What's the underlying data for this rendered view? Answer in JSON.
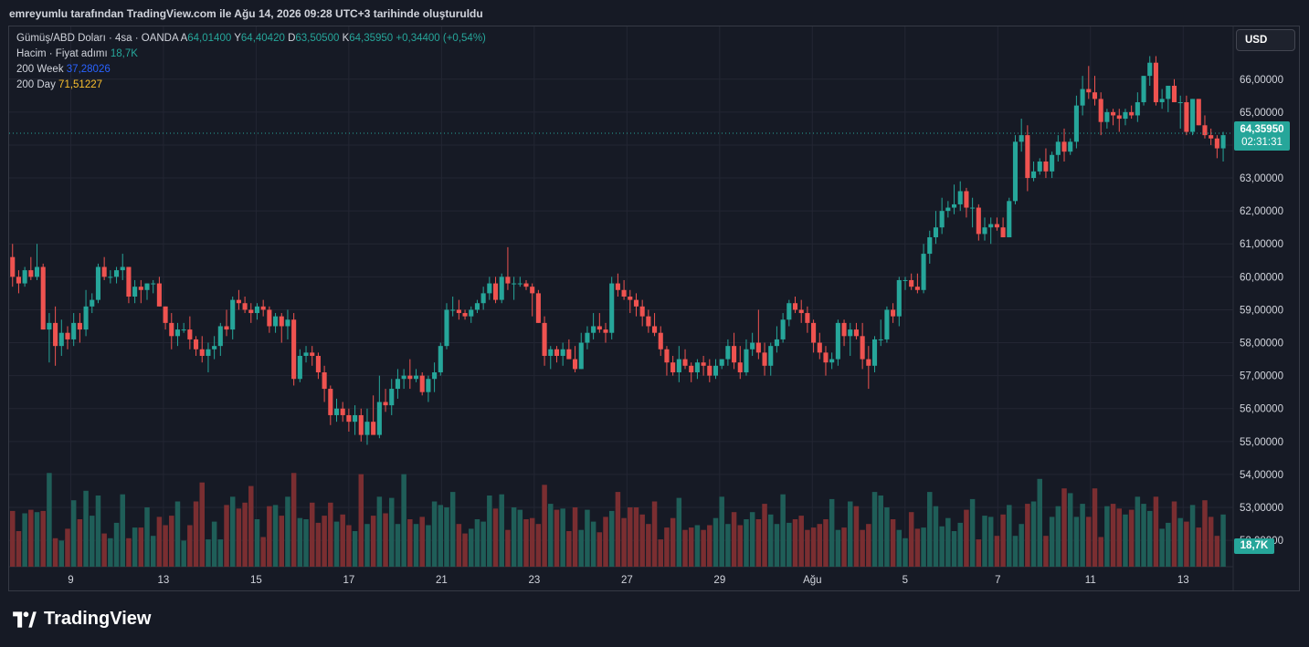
{
  "caption": "emreyumlu tarafından TradingView.com ile Ağu 14, 2026 09:28 UTC+3 tarihinde oluşturuldu",
  "legend": {
    "symbol": "Gümüş/ABD Doları · 4sa · OANDA",
    "a_label": "A",
    "a_value": "64,01400",
    "y_label": "Y",
    "y_value": "64,40420",
    "d_label": "D",
    "d_value": "63,50500",
    "k_label": "K",
    "k_value": "64,35950",
    "change": "+0,34400 (+0,54%)",
    "volume_label": "Hacim · Fiyat adımı",
    "volume_value": "18,7K",
    "ma200w_label": "200 Week",
    "ma200w_value": "37,28026",
    "ma200d_label": "200 Day",
    "ma200d_value": "71,51227"
  },
  "currency_button": "USD",
  "last_price": {
    "value": "64,35950",
    "countdown": "02:31:31"
  },
  "last_volume": "18,7K",
  "brand": "TradingView",
  "colors": {
    "background": "#161a25",
    "grid": "#232633",
    "up": "#26a69a",
    "down": "#ef5350",
    "vol_up": "#1f5e58",
    "vol_down": "#7a2e31",
    "text": "#d1d4dc"
  },
  "chart_data": {
    "type": "candlestick",
    "y_axis": {
      "ticks": [
        "66,00000",
        "65,00000",
        "64,00000",
        "63,00000",
        "62,00000",
        "61,00000",
        "60,00000",
        "59,00000",
        "58,00000",
        "57,00000",
        "56,00000",
        "55,00000",
        "54,00000",
        "53,00000",
        "52,00000"
      ],
      "tick_values": [
        66,
        65,
        64,
        63,
        62,
        61,
        60,
        59,
        58,
        57,
        56,
        55,
        54,
        53,
        52
      ],
      "range": [
        51.2,
        67.6
      ]
    },
    "x_axis": {
      "ticks": [
        "9",
        "13",
        "15",
        "17",
        "21",
        "23",
        "27",
        "29",
        "Ağu",
        "5",
        "7",
        "11",
        "13"
      ]
    },
    "grid": true,
    "last_price_line": 64.3595,
    "ohlc": [
      [
        60.6,
        61.0,
        59.7,
        60.0
      ],
      [
        60.0,
        60.2,
        59.5,
        59.8
      ],
      [
        59.8,
        60.3,
        59.7,
        60.2
      ],
      [
        60.2,
        60.6,
        59.9,
        60.0
      ],
      [
        60.0,
        61.0,
        59.9,
        60.3
      ],
      [
        60.3,
        60.4,
        58.4,
        58.4
      ],
      [
        58.4,
        58.9,
        57.4,
        58.6
      ],
      [
        58.6,
        59.1,
        57.3,
        57.9
      ],
      [
        57.9,
        58.7,
        57.6,
        58.3
      ],
      [
        58.3,
        58.5,
        57.8,
        58.1
      ],
      [
        58.1,
        58.9,
        57.9,
        58.6
      ],
      [
        58.6,
        58.9,
        58.0,
        58.4
      ],
      [
        58.4,
        59.6,
        58.2,
        59.1
      ],
      [
        59.1,
        59.5,
        58.9,
        59.3
      ],
      [
        59.3,
        60.4,
        59.2,
        60.3
      ],
      [
        60.3,
        60.6,
        59.9,
        60.0
      ],
      [
        60.0,
        60.2,
        59.8,
        60.0
      ],
      [
        60.0,
        60.3,
        59.8,
        60.2
      ],
      [
        60.2,
        60.7,
        59.9,
        60.3
      ],
      [
        60.3,
        60.3,
        59.2,
        59.4
      ],
      [
        59.4,
        59.9,
        59.2,
        59.7
      ],
      [
        59.7,
        59.9,
        59.2,
        59.6
      ],
      [
        59.6,
        59.8,
        59.3,
        59.8
      ],
      [
        59.8,
        59.9,
        59.5,
        59.8
      ],
      [
        59.8,
        60.0,
        59.1,
        59.1
      ],
      [
        59.1,
        59.1,
        58.4,
        58.6
      ],
      [
        58.6,
        58.9,
        57.8,
        58.2
      ],
      [
        58.2,
        58.6,
        57.9,
        58.4
      ],
      [
        58.4,
        58.6,
        58.3,
        58.4
      ],
      [
        58.4,
        58.8,
        57.8,
        58.1
      ],
      [
        58.1,
        58.2,
        57.6,
        57.8
      ],
      [
        57.8,
        58.2,
        57.4,
        57.6
      ],
      [
        57.6,
        58.0,
        57.1,
        57.8
      ],
      [
        57.8,
        58.2,
        57.5,
        57.9
      ],
      [
        57.9,
        58.6,
        57.6,
        58.5
      ],
      [
        58.5,
        59.0,
        58.2,
        58.4
      ],
      [
        58.4,
        59.4,
        58.1,
        59.3
      ],
      [
        59.3,
        59.6,
        59.0,
        59.2
      ],
      [
        59.2,
        59.4,
        58.9,
        59.0
      ],
      [
        59.0,
        59.2,
        58.6,
        58.9
      ],
      [
        58.9,
        59.2,
        58.7,
        59.1
      ],
      [
        59.1,
        59.3,
        58.8,
        59.0
      ],
      [
        59.0,
        59.1,
        58.3,
        58.5
      ],
      [
        58.5,
        58.9,
        58.3,
        58.8
      ],
      [
        58.8,
        58.9,
        58.0,
        58.5
      ],
      [
        58.5,
        59.0,
        58.1,
        58.7
      ],
      [
        58.7,
        58.9,
        56.7,
        56.9
      ],
      [
        56.9,
        57.8,
        56.8,
        57.6
      ],
      [
        57.6,
        57.9,
        57.4,
        57.7
      ],
      [
        57.7,
        57.9,
        57.3,
        57.6
      ],
      [
        57.6,
        57.7,
        56.9,
        57.1
      ],
      [
        57.1,
        57.3,
        56.2,
        56.6
      ],
      [
        56.6,
        56.7,
        55.5,
        55.8
      ],
      [
        55.8,
        56.3,
        55.6,
        56.0
      ],
      [
        56.0,
        56.2,
        55.6,
        55.8
      ],
      [
        55.8,
        56.0,
        55.3,
        55.6
      ],
      [
        55.6,
        56.1,
        55.2,
        55.8
      ],
      [
        55.8,
        56.0,
        55.0,
        55.2
      ],
      [
        55.2,
        56.0,
        54.9,
        55.6
      ],
      [
        55.6,
        56.4,
        55.3,
        55.2
      ],
      [
        55.2,
        57.0,
        55.1,
        56.2
      ],
      [
        56.2,
        56.6,
        55.9,
        56.1
      ],
      [
        56.1,
        56.9,
        55.8,
        56.6
      ],
      [
        56.6,
        57.2,
        56.3,
        56.9
      ],
      [
        56.9,
        57.2,
        56.6,
        57.0
      ],
      [
        57.0,
        57.5,
        56.6,
        56.9
      ],
      [
        56.9,
        57.2,
        56.8,
        57.0
      ],
      [
        57.0,
        57.1,
        56.4,
        56.5
      ],
      [
        56.5,
        57.0,
        56.2,
        56.9
      ],
      [
        56.9,
        57.4,
        56.5,
        57.1
      ],
      [
        57.1,
        58.0,
        57.0,
        57.9
      ],
      [
        57.9,
        59.2,
        57.8,
        59.0
      ],
      [
        59.0,
        59.4,
        58.8,
        59.0
      ],
      [
        59.0,
        59.3,
        58.7,
        58.9
      ],
      [
        58.9,
        59.0,
        58.7,
        58.8
      ],
      [
        58.8,
        59.1,
        58.6,
        59.0
      ],
      [
        59.0,
        59.3,
        58.9,
        59.2
      ],
      [
        59.2,
        59.7,
        59.0,
        59.5
      ],
      [
        59.5,
        60.0,
        59.3,
        59.8
      ],
      [
        59.8,
        60.0,
        59.2,
        59.3
      ],
      [
        59.3,
        60.1,
        59.2,
        60.0
      ],
      [
        60.0,
        60.9,
        59.6,
        59.8
      ],
      [
        59.8,
        60.0,
        59.3,
        59.8
      ],
      [
        59.8,
        60.0,
        59.7,
        59.8
      ],
      [
        59.8,
        59.9,
        59.6,
        59.7
      ],
      [
        59.7,
        59.8,
        58.8,
        59.5
      ],
      [
        59.5,
        59.6,
        58.6,
        58.6
      ],
      [
        58.6,
        58.8,
        57.3,
        57.6
      ],
      [
        57.6,
        57.9,
        57.2,
        57.8
      ],
      [
        57.8,
        57.9,
        57.4,
        57.6
      ],
      [
        57.6,
        58.0,
        57.3,
        57.8
      ],
      [
        57.8,
        58.1,
        57.6,
        57.5
      ],
      [
        57.5,
        57.9,
        57.1,
        57.2
      ],
      [
        57.2,
        58.3,
        57.2,
        58.0
      ],
      [
        58.0,
        58.5,
        57.8,
        58.3
      ],
      [
        58.3,
        58.9,
        58.1,
        58.5
      ],
      [
        58.5,
        58.9,
        58.3,
        58.4
      ],
      [
        58.4,
        58.6,
        58.0,
        58.3
      ],
      [
        58.3,
        60.0,
        58.1,
        59.8
      ],
      [
        59.8,
        60.1,
        59.4,
        59.6
      ],
      [
        59.6,
        59.9,
        59.3,
        59.4
      ],
      [
        59.4,
        59.6,
        58.9,
        59.3
      ],
      [
        59.3,
        59.5,
        58.8,
        59.1
      ],
      [
        59.1,
        59.3,
        58.5,
        58.8
      ],
      [
        58.8,
        59.0,
        58.3,
        58.5
      ],
      [
        58.5,
        58.9,
        58.2,
        58.3
      ],
      [
        58.3,
        58.5,
        57.6,
        57.8
      ],
      [
        57.8,
        57.9,
        57.0,
        57.4
      ],
      [
        57.4,
        57.6,
        57.0,
        57.1
      ],
      [
        57.1,
        57.9,
        56.8,
        57.5
      ],
      [
        57.5,
        57.8,
        57.2,
        57.3
      ],
      [
        57.3,
        57.4,
        56.8,
        57.1
      ],
      [
        57.1,
        57.5,
        56.9,
        57.4
      ],
      [
        57.4,
        57.6,
        57.0,
        57.3
      ],
      [
        57.3,
        57.5,
        56.8,
        57.0
      ],
      [
        57.0,
        57.5,
        56.9,
        57.3
      ],
      [
        57.3,
        57.5,
        57.2,
        57.5
      ],
      [
        57.5,
        58.1,
        57.3,
        57.9
      ],
      [
        57.9,
        58.3,
        57.2,
        57.4
      ],
      [
        57.4,
        57.9,
        56.9,
        57.1
      ],
      [
        57.1,
        58.1,
        57.0,
        57.8
      ],
      [
        57.8,
        58.3,
        57.6,
        58.0
      ],
      [
        58.0,
        59.0,
        57.5,
        57.7
      ],
      [
        57.7,
        58.0,
        57.0,
        57.3
      ],
      [
        57.3,
        58.0,
        57.0,
        57.9
      ],
      [
        57.9,
        58.5,
        57.7,
        58.1
      ],
      [
        58.1,
        58.9,
        58.0,
        58.7
      ],
      [
        58.7,
        59.3,
        58.5,
        59.2
      ],
      [
        59.2,
        59.4,
        58.9,
        59.0
      ],
      [
        59.0,
        59.3,
        58.6,
        58.9
      ],
      [
        58.9,
        59.1,
        58.3,
        58.6
      ],
      [
        58.6,
        58.7,
        57.7,
        58.0
      ],
      [
        58.0,
        58.3,
        57.5,
        57.7
      ],
      [
        57.7,
        57.9,
        57.0,
        57.4
      ],
      [
        57.4,
        57.7,
        57.2,
        57.5
      ],
      [
        57.5,
        58.7,
        57.3,
        58.6
      ],
      [
        58.6,
        58.7,
        57.9,
        58.2
      ],
      [
        58.2,
        58.6,
        57.6,
        58.4
      ],
      [
        58.4,
        58.6,
        58.1,
        58.2
      ],
      [
        58.2,
        58.6,
        57.2,
        57.5
      ],
      [
        57.5,
        57.9,
        56.6,
        57.3
      ],
      [
        57.3,
        58.2,
        57.1,
        58.1
      ],
      [
        58.1,
        58.7,
        57.9,
        58.1
      ],
      [
        58.1,
        59.1,
        58.0,
        59.0
      ],
      [
        59.0,
        59.2,
        58.6,
        58.8
      ],
      [
        58.8,
        60.0,
        58.5,
        59.9
      ],
      [
        59.9,
        60.0,
        59.6,
        59.9
      ],
      [
        59.9,
        60.1,
        59.6,
        59.7
      ],
      [
        59.7,
        60.1,
        59.5,
        59.6
      ],
      [
        59.6,
        61.0,
        59.5,
        60.7
      ],
      [
        60.7,
        61.4,
        60.4,
        61.2
      ],
      [
        61.2,
        62.0,
        61.0,
        61.5
      ],
      [
        61.5,
        62.4,
        61.3,
        62.0
      ],
      [
        62.0,
        62.3,
        61.8,
        62.1
      ],
      [
        62.1,
        62.8,
        61.9,
        62.2
      ],
      [
        62.2,
        62.9,
        62.0,
        62.6
      ],
      [
        62.6,
        62.7,
        61.8,
        62.1
      ],
      [
        62.1,
        62.4,
        61.5,
        62.1
      ],
      [
        62.1,
        62.2,
        61.1,
        61.3
      ],
      [
        61.3,
        61.8,
        61.1,
        61.5
      ],
      [
        61.5,
        61.8,
        61.0,
        61.6
      ],
      [
        61.6,
        61.8,
        61.4,
        61.5
      ],
      [
        61.5,
        61.8,
        61.2,
        61.2
      ],
      [
        61.2,
        62.4,
        61.2,
        62.3
      ],
      [
        62.3,
        64.3,
        62.2,
        64.1
      ],
      [
        64.1,
        64.8,
        63.8,
        64.3
      ],
      [
        64.3,
        64.6,
        62.6,
        63.0
      ],
      [
        63.0,
        63.5,
        62.9,
        63.2
      ],
      [
        63.2,
        63.6,
        63.1,
        63.5
      ],
      [
        63.5,
        63.9,
        63.0,
        63.2
      ],
      [
        63.2,
        63.8,
        63.0,
        63.7
      ],
      [
        63.7,
        64.3,
        63.5,
        64.1
      ],
      [
        64.1,
        64.5,
        63.5,
        63.8
      ],
      [
        63.8,
        64.2,
        63.7,
        64.1
      ],
      [
        64.1,
        65.5,
        63.9,
        65.2
      ],
      [
        65.2,
        66.1,
        64.9,
        65.7
      ],
      [
        65.7,
        66.4,
        65.4,
        65.6
      ],
      [
        65.6,
        66.1,
        65.2,
        65.4
      ],
      [
        65.4,
        65.6,
        64.3,
        64.7
      ],
      [
        64.7,
        65.1,
        64.5,
        65.0
      ],
      [
        65.0,
        65.1,
        64.6,
        64.9
      ],
      [
        64.9,
        65.1,
        64.4,
        64.8
      ],
      [
        64.8,
        65.1,
        64.6,
        65.0
      ],
      [
        65.0,
        65.2,
        64.8,
        64.9
      ],
      [
        64.9,
        65.6,
        64.7,
        65.3
      ],
      [
        65.3,
        66.1,
        65.2,
        66.1
      ],
      [
        66.1,
        66.7,
        65.8,
        66.5
      ],
      [
        66.5,
        66.7,
        65.2,
        65.3
      ],
      [
        65.3,
        65.7,
        65.1,
        65.4
      ],
      [
        65.4,
        65.8,
        65.0,
        65.8
      ],
      [
        65.8,
        66.0,
        65.3,
        65.3
      ],
      [
        65.3,
        65.5,
        64.5,
        65.3
      ],
      [
        65.3,
        65.5,
        64.3,
        64.4
      ],
      [
        64.4,
        65.4,
        64.3,
        65.4
      ],
      [
        65.4,
        65.4,
        64.6,
        64.6
      ],
      [
        64.6,
        64.9,
        64.2,
        64.3
      ],
      [
        64.3,
        64.5,
        64.0,
        64.2
      ],
      [
        64.2,
        64.3,
        63.6,
        63.9
      ],
      [
        63.9,
        64.4,
        63.5,
        64.3
      ]
    ],
    "volume": [
      0.47,
      0.3,
      0.45,
      0.48,
      0.46,
      0.47,
      0.79,
      0.24,
      0.22,
      0.32,
      0.56,
      0.4,
      0.64,
      0.43,
      0.6,
      0.28,
      0.24,
      0.37,
      0.61,
      0.24,
      0.33,
      0.33,
      0.5,
      0.26,
      0.42,
      0.35,
      0.43,
      0.55,
      0.22,
      0.35,
      0.55,
      0.71,
      0.23,
      0.38,
      0.23,
      0.52,
      0.59,
      0.49,
      0.54,
      0.68,
      0.4,
      0.25,
      0.51,
      0.52,
      0.43,
      0.59,
      0.79,
      0.41,
      0.4,
      0.54,
      0.37,
      0.43,
      0.54,
      0.38,
      0.44,
      0.35,
      0.3,
      0.78,
      0.36,
      0.43,
      0.59,
      0.45,
      0.58,
      0.36,
      0.78,
      0.4,
      0.36,
      0.42,
      0.35,
      0.55,
      0.52,
      0.5,
      0.63,
      0.36,
      0.28,
      0.32,
      0.4,
      0.38,
      0.6,
      0.49,
      0.61,
      0.31,
      0.5,
      0.48,
      0.4,
      0.41,
      0.36,
      0.69,
      0.53,
      0.48,
      0.49,
      0.3,
      0.5,
      0.31,
      0.48,
      0.38,
      0.29,
      0.42,
      0.47,
      0.63,
      0.41,
      0.5,
      0.5,
      0.44,
      0.36,
      0.55,
      0.23,
      0.33,
      0.41,
      0.58,
      0.31,
      0.33,
      0.35,
      0.31,
      0.35,
      0.41,
      0.59,
      0.36,
      0.46,
      0.35,
      0.4,
      0.46,
      0.4,
      0.53,
      0.44,
      0.36,
      0.61,
      0.37,
      0.4,
      0.43,
      0.31,
      0.33,
      0.36,
      0.4,
      0.57,
      0.31,
      0.33,
      0.55,
      0.51,
      0.31,
      0.36,
      0.63,
      0.6,
      0.5,
      0.4,
      0.31,
      0.24,
      0.46,
      0.32,
      0.33,
      0.63,
      0.51,
      0.34,
      0.41,
      0.3,
      0.37,
      0.48,
      0.57,
      0.23,
      0.43,
      0.42,
      0.26,
      0.44,
      0.52,
      0.26,
      0.36,
      0.53,
      0.55,
      0.74,
      0.26,
      0.42,
      0.51,
      0.66,
      0.62,
      0.42,
      0.53,
      0.42,
      0.66,
      0.25,
      0.51,
      0.53,
      0.49,
      0.44,
      0.48,
      0.59,
      0.53,
      0.47,
      0.59,
      0.32,
      0.37,
      0.55,
      0.41,
      0.38,
      0.52,
      0.33,
      0.56,
      0.42,
      0.26,
      0.44,
      0.26,
      0.45,
      0.48,
      0.15
    ]
  }
}
